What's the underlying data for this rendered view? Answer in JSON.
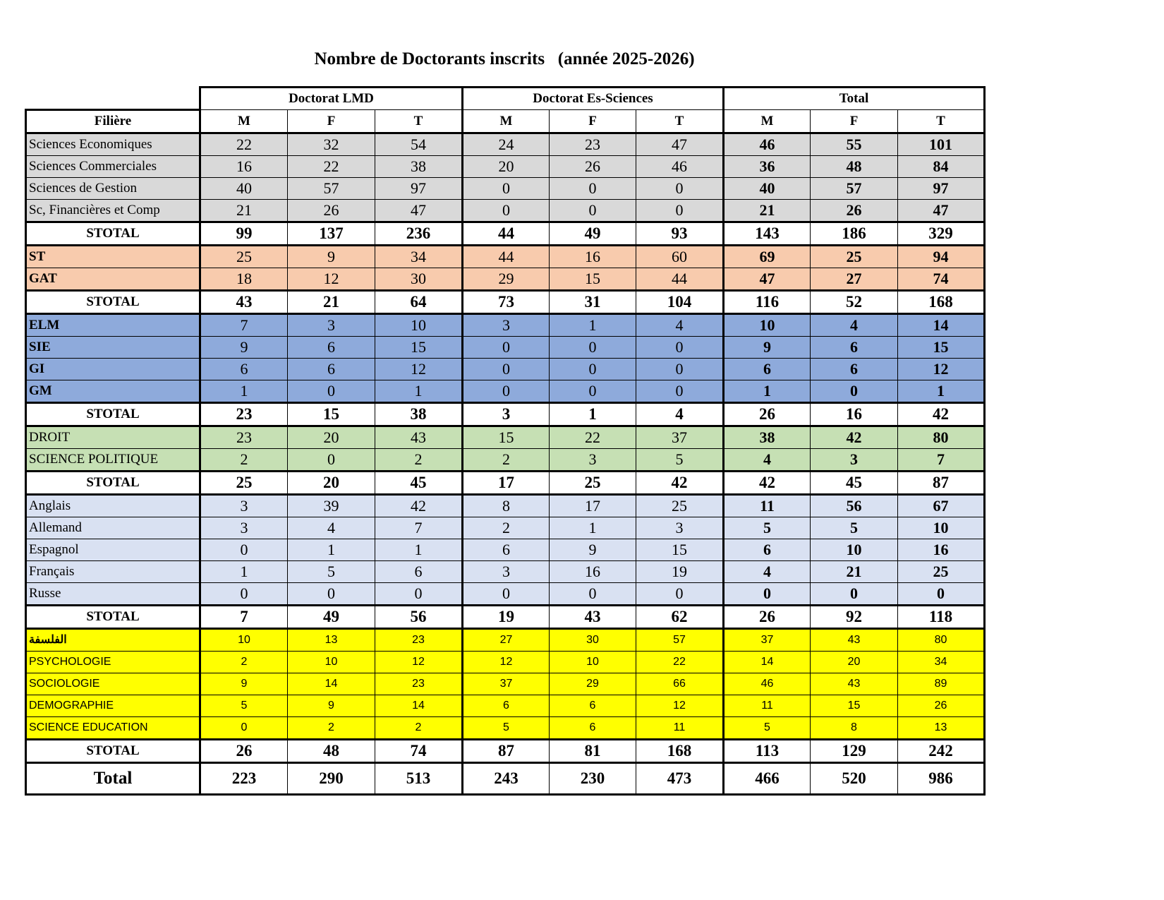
{
  "title": "Nombre de Doctorants inscrits   (année 2025-2026)",
  "header": {
    "groups": [
      "Doctorat LMD",
      "Doctorat Es-Sciences",
      "Total"
    ],
    "filiere": "Filière",
    "subcols": [
      "M",
      "F",
      "T",
      "M",
      "F",
      "T",
      "M",
      "F",
      "T"
    ]
  },
  "colors": {
    "gray": "#d9d9d9",
    "peach": "#f8cbad",
    "blue": "#8eaadb",
    "green": "#c6e0b4",
    "lightblue": "#d9e1f2",
    "yellow": "#ffff00"
  },
  "groups": [
    {
      "color": "gray",
      "rows": [
        {
          "label": "Sciences Economiques",
          "values": [
            22,
            32,
            54,
            24,
            23,
            47,
            46,
            55,
            101
          ]
        },
        {
          "label": "Sciences Commerciales",
          "values": [
            16,
            22,
            38,
            20,
            26,
            46,
            36,
            48,
            84
          ]
        },
        {
          "label": "Sciences de Gestion",
          "values": [
            40,
            57,
            97,
            0,
            0,
            0,
            40,
            57,
            97
          ]
        },
        {
          "label": "Sc, Financières et Comp",
          "values": [
            21,
            26,
            47,
            0,
            0,
            0,
            21,
            26,
            47
          ]
        }
      ],
      "subtotal": {
        "label": "STOTAL",
        "values": [
          99,
          137,
          236,
          44,
          49,
          93,
          143,
          186,
          329
        ]
      }
    },
    {
      "color": "peach",
      "bold_labels": true,
      "rows": [
        {
          "label": "ST",
          "values": [
            25,
            9,
            34,
            44,
            16,
            60,
            69,
            25,
            94
          ]
        },
        {
          "label": "GAT",
          "values": [
            18,
            12,
            30,
            29,
            15,
            44,
            47,
            27,
            74
          ]
        }
      ],
      "subtotal": {
        "label": "STOTAL",
        "values": [
          43,
          21,
          64,
          73,
          31,
          104,
          116,
          52,
          168
        ]
      }
    },
    {
      "color": "blue",
      "bold_labels": true,
      "rows": [
        {
          "label": "ELM",
          "values": [
            7,
            3,
            10,
            3,
            1,
            4,
            10,
            4,
            14
          ]
        },
        {
          "label": "SIE",
          "values": [
            9,
            6,
            15,
            0,
            0,
            0,
            9,
            6,
            15
          ]
        },
        {
          "label": "GI",
          "values": [
            6,
            6,
            12,
            0,
            0,
            0,
            6,
            6,
            12
          ]
        },
        {
          "label": "GM",
          "values": [
            1,
            0,
            1,
            0,
            0,
            0,
            1,
            0,
            1
          ]
        }
      ],
      "subtotal": {
        "label": "STOTAL",
        "values": [
          23,
          15,
          38,
          3,
          1,
          4,
          26,
          16,
          42
        ]
      }
    },
    {
      "color": "green",
      "rows": [
        {
          "label": "DROIT",
          "values": [
            23,
            20,
            43,
            15,
            22,
            37,
            38,
            42,
            80
          ]
        },
        {
          "label": "SCIENCE POLITIQUE",
          "values": [
            2,
            0,
            2,
            2,
            3,
            5,
            4,
            3,
            7
          ]
        }
      ],
      "subtotal": {
        "label": "STOTAL",
        "values": [
          25,
          20,
          45,
          17,
          25,
          42,
          42,
          45,
          87
        ]
      }
    },
    {
      "color": "lightblue",
      "rows": [
        {
          "label": "Anglais",
          "values": [
            3,
            39,
            42,
            8,
            17,
            25,
            11,
            56,
            67
          ]
        },
        {
          "label": "Allemand",
          "values": [
            3,
            4,
            7,
            2,
            1,
            3,
            5,
            5,
            10
          ]
        },
        {
          "label": "Espagnol",
          "values": [
            0,
            1,
            1,
            6,
            9,
            15,
            6,
            10,
            16
          ]
        },
        {
          "label": "Français",
          "values": [
            1,
            5,
            6,
            3,
            16,
            19,
            4,
            21,
            25
          ]
        },
        {
          "label": "Russe",
          "values": [
            0,
            0,
            0,
            0,
            0,
            0,
            0,
            0,
            0
          ]
        }
      ],
      "subtotal": {
        "label": "STOTAL",
        "values": [
          7,
          49,
          56,
          19,
          43,
          62,
          26,
          92,
          118
        ]
      }
    },
    {
      "color": "yellow",
      "sans": true,
      "rows": [
        {
          "label": "الفلسفة",
          "rtl": true,
          "values": [
            10,
            13,
            23,
            27,
            30,
            57,
            37,
            43,
            80
          ]
        },
        {
          "label": "PSYCHOLOGIE",
          "values": [
            2,
            10,
            12,
            12,
            10,
            22,
            14,
            20,
            34
          ]
        },
        {
          "label": "SOCIOLOGIE",
          "values": [
            9,
            14,
            23,
            37,
            29,
            66,
            46,
            43,
            89
          ]
        },
        {
          "label": "DEMOGRAPHIE",
          "values": [
            5,
            9,
            14,
            6,
            6,
            12,
            11,
            15,
            26
          ]
        },
        {
          "label": "SCIENCE EDUCATION",
          "values": [
            0,
            2,
            2,
            5,
            6,
            11,
            5,
            8,
            13
          ]
        }
      ],
      "subtotal": {
        "label": "STOTAL",
        "values": [
          26,
          48,
          74,
          87,
          81,
          168,
          113,
          129,
          242
        ]
      }
    }
  ],
  "grand_total": {
    "label": "Total",
    "values": [
      223,
      290,
      513,
      243,
      230,
      473,
      466,
      520,
      986
    ]
  }
}
